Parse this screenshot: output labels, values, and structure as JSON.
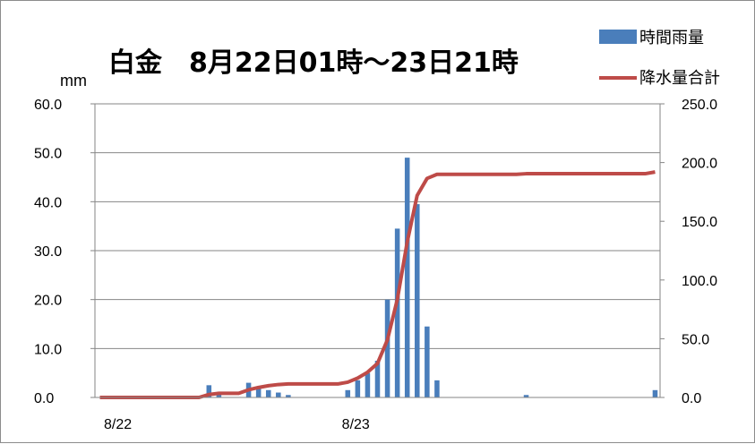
{
  "chart_data": {
    "type": "bar+line",
    "title": "白金　8月22日01時～23日21時",
    "y_left_unit": "mm",
    "y_left_range": [
      0,
      60
    ],
    "y_left_ticks": [
      "0.0",
      "10.0",
      "20.0",
      "30.0",
      "40.0",
      "50.0",
      "60.0"
    ],
    "y_right_range": [
      0,
      250
    ],
    "y_right_ticks": [
      "0.0",
      "50.0",
      "100.0",
      "150.0",
      "200.0",
      "250.0"
    ],
    "x_tick_labels": [
      {
        "label": "8/22",
        "hour_index": 0
      },
      {
        "label": "8/23",
        "hour_index": 24
      }
    ],
    "grid": true,
    "legend_position": "top-right",
    "series": [
      {
        "name": "時間雨量",
        "kind": "bar",
        "axis": "left",
        "color": "#4a7ebb",
        "values": [
          0,
          0,
          0,
          0,
          0,
          0,
          0,
          0,
          0,
          0,
          0,
          2.5,
          1,
          0,
          0,
          3,
          2,
          1.5,
          1,
          0.5,
          0,
          0,
          0,
          0,
          0,
          1.5,
          3.5,
          5,
          7.5,
          20,
          34.5,
          49,
          39.5,
          14.5,
          3.5,
          0,
          0,
          0,
          0,
          0,
          0,
          0,
          0,
          0.5,
          0,
          0,
          0,
          0,
          0,
          0,
          0,
          0,
          0,
          0,
          0,
          0,
          1.5
        ]
      },
      {
        "name": "降水量合計",
        "kind": "line",
        "axis": "right",
        "color": "#be4b48",
        "values": [
          0,
          0,
          0,
          0,
          0,
          0,
          0,
          0,
          0,
          0,
          0,
          2.5,
          3.5,
          3.5,
          3.5,
          6.5,
          8.5,
          10,
          11,
          11.5,
          11.5,
          11.5,
          11.5,
          11.5,
          11.5,
          13,
          16.5,
          21.5,
          29,
          49,
          83.5,
          132.5,
          172,
          186.5,
          190,
          190,
          190,
          190,
          190,
          190,
          190,
          190,
          190,
          190.5,
          190.5,
          190.5,
          190.5,
          190.5,
          190.5,
          190.5,
          190.5,
          190.5,
          190.5,
          190.5,
          190.5,
          190.5,
          192
        ]
      }
    ]
  }
}
